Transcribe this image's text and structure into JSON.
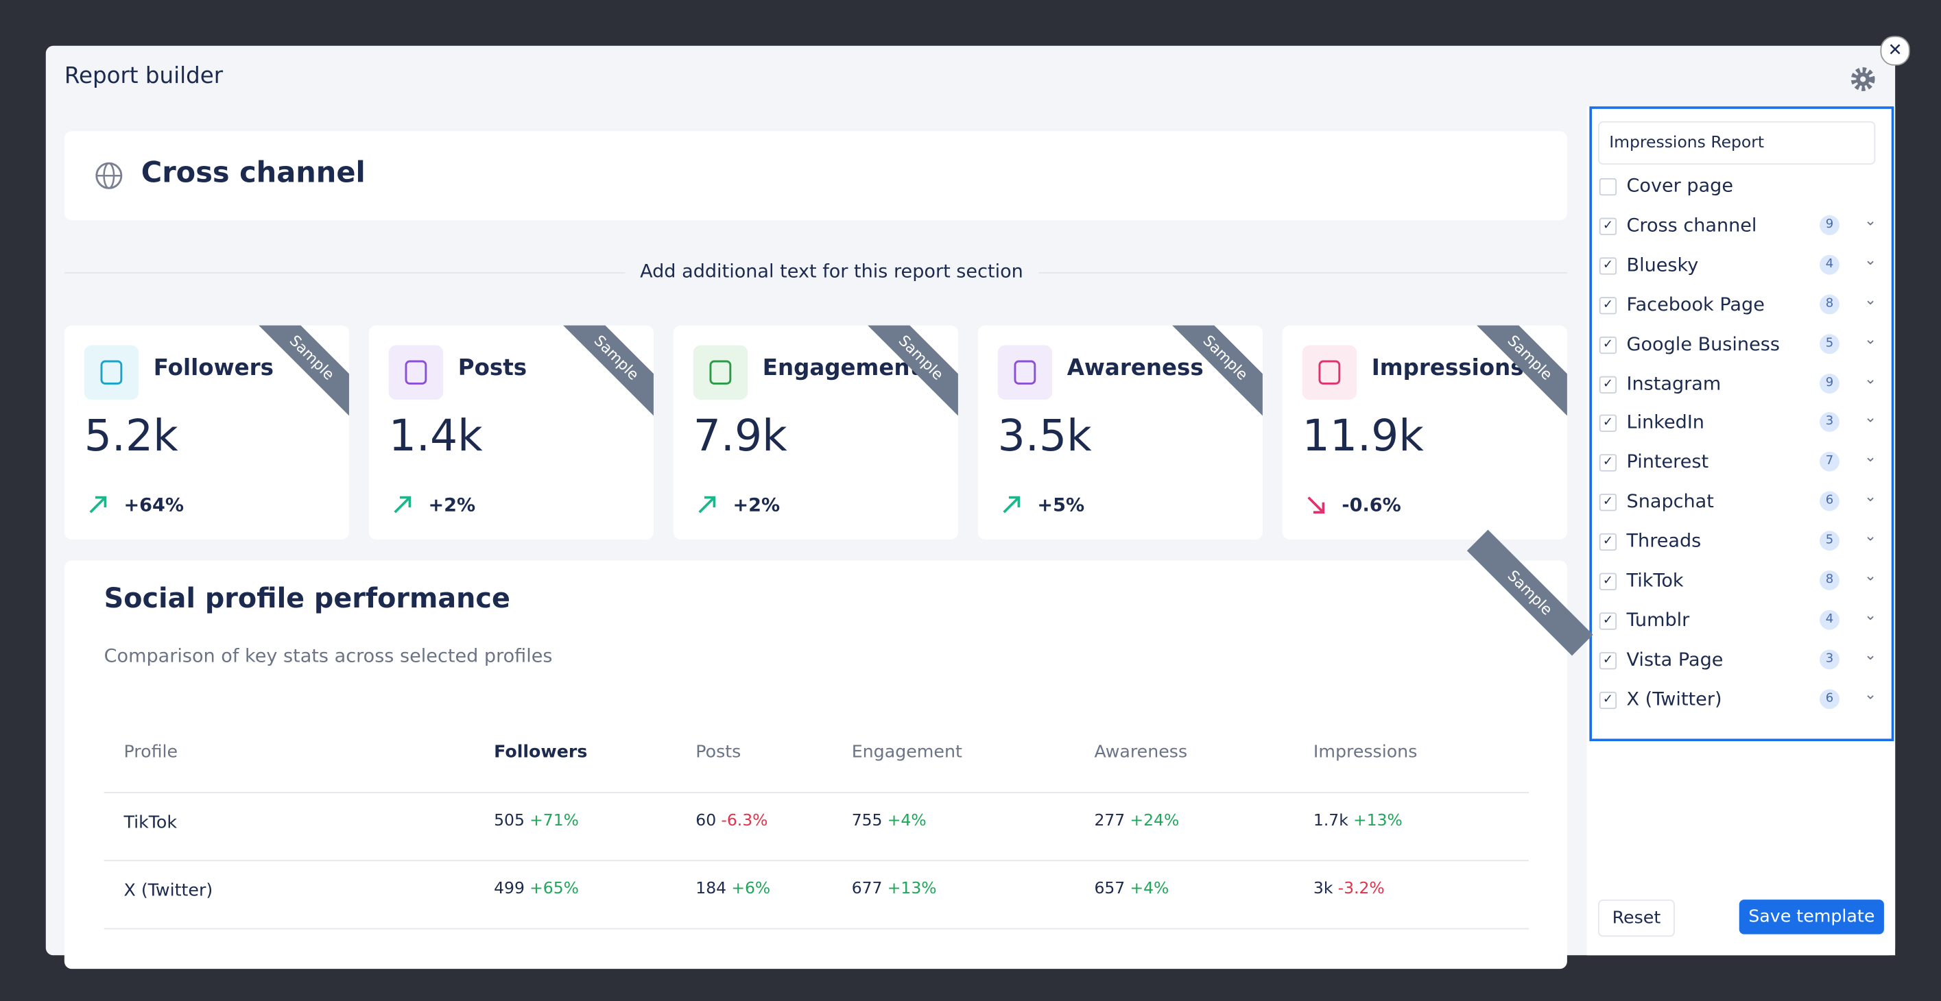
{
  "modal": {
    "title": "Report builder"
  },
  "section": {
    "title": "Cross channel",
    "add_text": "Add additional text for this report section"
  },
  "sample_label": "Sample",
  "kpis": [
    {
      "label": "Followers",
      "value": "5.2k",
      "change": "+64%"
    },
    {
      "label": "Posts",
      "value": "1.4k",
      "change": "+2%"
    },
    {
      "label": "Engagement",
      "value": "7.9k",
      "change": "+2%"
    },
    {
      "label": "Awareness",
      "value": "3.5k",
      "change": "+5%"
    },
    {
      "label": "Impressions",
      "value": "11.9k",
      "change": "-0.6%"
    }
  ],
  "performance": {
    "title": "Social profile performance",
    "subtitle": "Comparison of key stats across selected profiles",
    "columns": [
      "Profile",
      "Followers",
      "Posts",
      "Engagement",
      "Awareness",
      "Impressions"
    ],
    "rows": [
      {
        "profile": "TikTok",
        "cells": [
          [
            "505",
            "+71%"
          ],
          [
            "60",
            "-6.3%"
          ],
          [
            "755",
            "+4%"
          ],
          [
            "277",
            "+24%"
          ],
          [
            "1.7k",
            "+13%"
          ]
        ]
      },
      {
        "profile": "X (Twitter)",
        "cells": [
          [
            "499",
            "+65%"
          ],
          [
            "184",
            "+6%"
          ],
          [
            "677",
            "+13%"
          ],
          [
            "657",
            "+4%"
          ],
          [
            "3k",
            "-3.2%"
          ]
        ]
      }
    ]
  },
  "sidebar": {
    "report_name": "Impressions Report",
    "items": [
      {
        "label": "Cover page",
        "checked": false,
        "count": null
      },
      {
        "label": "Cross channel",
        "checked": true,
        "count": 9
      },
      {
        "label": "Bluesky",
        "checked": true,
        "count": 4
      },
      {
        "label": "Facebook Page",
        "checked": true,
        "count": 8
      },
      {
        "label": "Google Business",
        "checked": true,
        "count": 5
      },
      {
        "label": "Instagram",
        "checked": true,
        "count": 9
      },
      {
        "label": "LinkedIn",
        "checked": true,
        "count": 3
      },
      {
        "label": "Pinterest",
        "checked": true,
        "count": 7
      },
      {
        "label": "Snapchat",
        "checked": true,
        "count": 6
      },
      {
        "label": "Threads",
        "checked": true,
        "count": 5
      },
      {
        "label": "TikTok",
        "checked": true,
        "count": 8
      },
      {
        "label": "Tumblr",
        "checked": true,
        "count": 4
      },
      {
        "label": "Vista Page",
        "checked": true,
        "count": 3
      },
      {
        "label": "X (Twitter)",
        "checked": true,
        "count": 6
      }
    ],
    "reset": "Reset",
    "save": "Save template"
  }
}
